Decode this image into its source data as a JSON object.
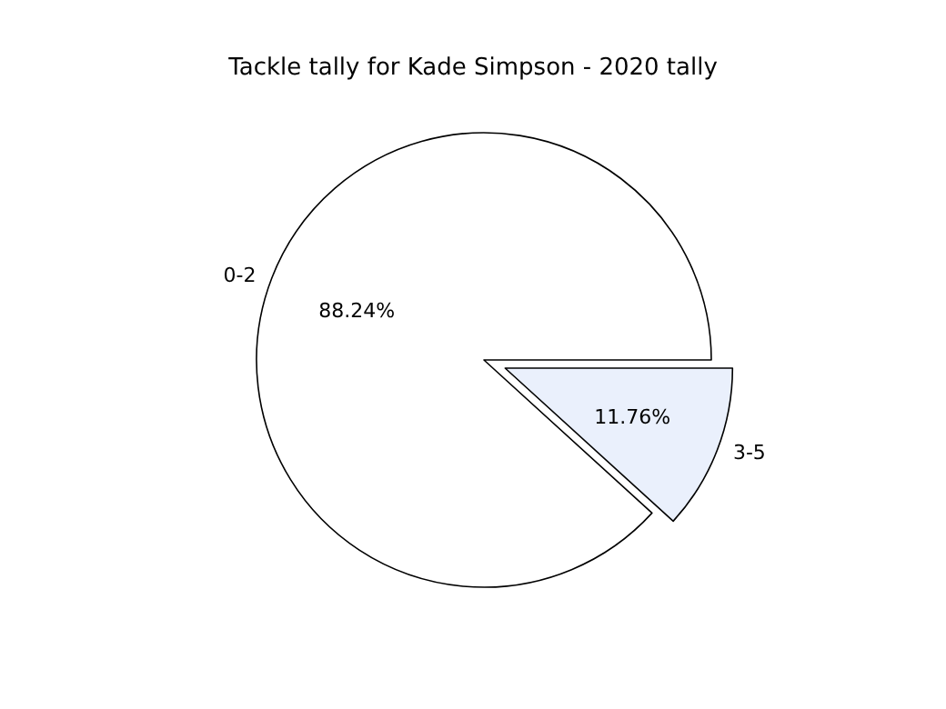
{
  "chart_data": {
    "type": "pie",
    "title": "Tackle tally for Kade Simpson - 2020 tally",
    "categories": [
      "0-2",
      "3-5"
    ],
    "values": [
      88.24,
      11.76
    ],
    "colors": [
      "#ffffff",
      "#eaf0fc"
    ],
    "value_labels": [
      "88.24%",
      "11.76%"
    ],
    "legend": false
  }
}
